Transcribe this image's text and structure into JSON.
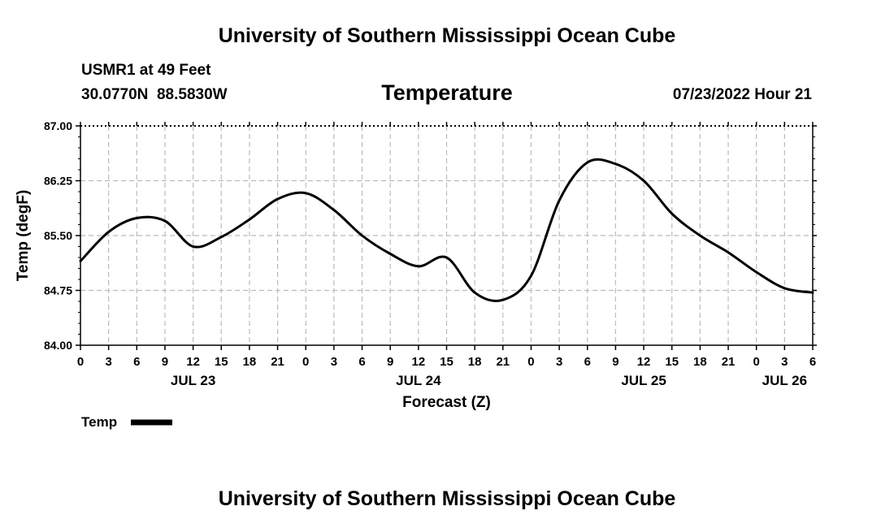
{
  "header": {
    "title": "University of Southern Mississippi Ocean Cube",
    "station": "USMR1 at 49 Feet",
    "coords": "30.0770N  88.5830W",
    "variable": "Temperature",
    "datetime": "07/23/2022 Hour 21"
  },
  "footer": {
    "title": "University of Southern Mississippi Ocean Cube"
  },
  "colors": {
    "line": "#000000",
    "grid": "#bbbbbb",
    "background": "#ffffff"
  },
  "chart_data": {
    "type": "line",
    "title": "Temperature",
    "xlabel": "Forecast (Z)",
    "ylabel": "Temp (degF)",
    "x_unit": "forecast hour",
    "xlim": [
      0,
      78
    ],
    "ylim": [
      84.0,
      87.0
    ],
    "y_ticks": [
      84.0,
      84.75,
      85.5,
      86.25,
      87.0
    ],
    "y_tick_labels": [
      "84.00",
      "84.75",
      "85.50",
      "86.25",
      "87.00"
    ],
    "x_ticks": [
      0,
      3,
      6,
      9,
      12,
      15,
      18,
      21,
      24,
      27,
      30,
      33,
      36,
      39,
      42,
      45,
      48,
      51,
      54,
      57,
      60,
      63,
      66,
      69,
      72,
      75,
      78
    ],
    "x_tick_labels": [
      "0",
      "3",
      "6",
      "9",
      "12",
      "15",
      "18",
      "21",
      "0",
      "3",
      "6",
      "9",
      "12",
      "15",
      "18",
      "21",
      "0",
      "3",
      "6",
      "9",
      "12",
      "15",
      "18",
      "21",
      "0",
      "3",
      "6"
    ],
    "date_labels": [
      {
        "x": 12,
        "label": "JUL 23"
      },
      {
        "x": 36,
        "label": "JUL 24"
      },
      {
        "x": 60,
        "label": "JUL 25"
      },
      {
        "x": 75,
        "label": "JUL 26"
      }
    ],
    "grid": true,
    "legend": [
      {
        "name": "Temp",
        "position": "bottom-left"
      }
    ],
    "series": [
      {
        "name": "Temp",
        "x": [
          0,
          3,
          6,
          9,
          12,
          15,
          18,
          21,
          24,
          27,
          30,
          33,
          36,
          39,
          42,
          45,
          48,
          51,
          54,
          57,
          60,
          63,
          66,
          69,
          72,
          75,
          78
        ],
        "values": [
          85.15,
          85.55,
          85.74,
          85.7,
          85.35,
          85.48,
          85.72,
          86.0,
          86.08,
          85.85,
          85.5,
          85.25,
          85.08,
          85.2,
          84.72,
          84.62,
          84.95,
          85.98,
          86.5,
          86.48,
          86.25,
          85.8,
          85.5,
          85.27,
          85.0,
          84.78,
          84.72
        ]
      }
    ]
  }
}
